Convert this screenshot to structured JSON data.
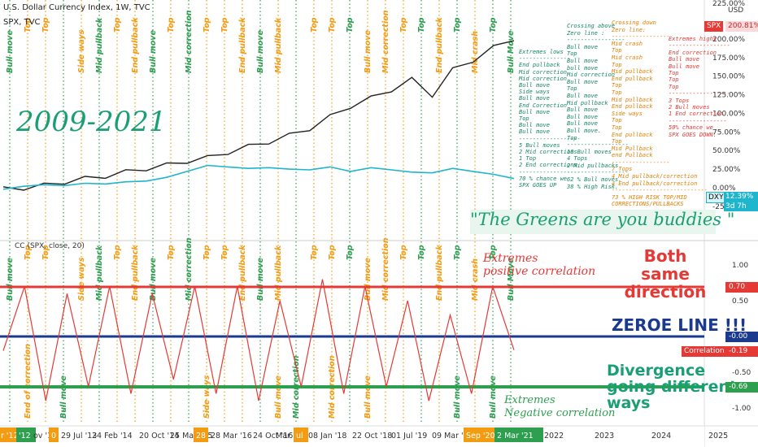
{
  "header": {
    "line1": "U.S. Dollar Currency Index, 1W, TVC",
    "line2": "SPX, TVC",
    "currency": "USD",
    "pct_top": "225.00%"
  },
  "badges": {
    "spx": {
      "name": "SPX",
      "value": "200.81%"
    },
    "dxy": {
      "name": "DXY",
      "value": "12.39%",
      "sub": "3d 7h"
    },
    "pos": {
      "value": "0.70"
    },
    "zero": {
      "value": "-0.00"
    },
    "corr": {
      "name": "Correlation",
      "value": "-0.19"
    },
    "neg": {
      "value": "-0.69"
    }
  },
  "titles": {
    "years": "2009-2021",
    "greens": "\"The Greens are you buddies \"",
    "cc_label": "CC (SPX, close, 20)",
    "ext_pos": [
      "Extremes",
      "positive correlation"
    ],
    "both": [
      "Both",
      "same direction"
    ],
    "zero_line": "ZEROE LINE !!!",
    "divergence": [
      "Divergence",
      "going different",
      "ways"
    ],
    "ext_neg": [
      "Extremes",
      "Negative correlation"
    ]
  },
  "colors": {
    "green": "#2e9e4f",
    "orange": "#f39c12",
    "red": "#e53935",
    "blue": "#1a3a8f",
    "cyan": "#1fb5cc",
    "spx": "#222"
  },
  "notes": {
    "col1": [
      "Extremes lows",
      "---------------",
      "End pullback",
      "Mid correction",
      "Mid correction",
      "Bull move",
      "Side ways",
      "Bull move",
      "End Correction",
      "Bull move",
      "Top",
      "Bull move",
      "Bull move",
      "------------------",
      "5 Bull moves",
      "2 Mid corrections",
      "1 Top",
      "2 End corrections",
      "------------------",
      "70 % chance we",
      "SPX GOES UP"
    ],
    "col2": [
      "Crossing above",
      "Zero line :",
      "-----------------",
      "Bull move",
      "Top",
      "Bull move",
      "bull move",
      "Mid correction",
      "Bull move",
      "Top",
      "Bull move",
      "Mid pullback",
      "Bull move",
      "Bull move",
      "Bull move",
      "Bull move.",
      "Top",
      "------------------",
      "10 Bull moves",
      "4 Tops",
      "2 Mid pullbacks",
      "------------------",
      "62 % Bull moves.",
      "38 % High Risk."
    ],
    "col3": [
      "Crossing down",
      "Zero line:",
      "-----------------",
      "Mid crash",
      "Top",
      "Mid crash",
      "Top",
      "Mid pullback",
      "End pullback",
      "Top",
      "Top",
      "Mid pullback",
      "End pullback",
      "Side ways",
      "Top",
      "Top",
      "End pullback",
      "Top",
      "Mid Pullback",
      "end Pullback",
      "-----------------",
      "7 Tops",
      "4 Mid pullback/correction",
      "4 End pullback/correction",
      "----------------------------",
      "73 % HIGH RISK TOP/MID",
      "CORRECTIONS/PULLBACKS"
    ],
    "col4": [
      "Extremes highs",
      "------------------",
      "End correction",
      "Bull move",
      "Bull move",
      "Top",
      "Top",
      "Top",
      "------------------",
      "3 Tops",
      "2 Bull moves",
      "1 End correction",
      "-----------------",
      "50% chance we",
      "SPX GOES DOWN."
    ]
  },
  "price_axis": [
    "225.00%",
    "200.00%",
    "175.00%",
    "150.00%",
    "125.00%",
    "100.00%",
    "75.00%",
    "50.00%",
    "25.00%",
    "0.00%",
    "-25.00%"
  ],
  "corr_axis": [
    "1.00",
    "0.50",
    "-0.50",
    "-1.00"
  ],
  "vlines": [
    {
      "color": "green",
      "top": "Bull move",
      "bottom": ""
    },
    {
      "color": "orange",
      "top": "Top",
      "bottom": "End of correction"
    },
    {
      "color": "orange",
      "top": "Top",
      "bottom": ""
    },
    {
      "color": "green",
      "top": "",
      "bottom": "Bull move"
    },
    {
      "color": "orange",
      "top": "Side ways",
      "bottom": ""
    },
    {
      "color": "green",
      "top": "Mid pullback",
      "bottom": ""
    },
    {
      "color": "orange",
      "top": "Top",
      "bottom": ""
    },
    {
      "color": "orange",
      "top": "End pullback",
      "bottom": ""
    },
    {
      "color": "green",
      "top": "Bull move",
      "bottom": ""
    },
    {
      "color": "orange",
      "top": "Top",
      "bottom": ""
    },
    {
      "color": "green",
      "top": "Mid correction",
      "bottom": ""
    },
    {
      "color": "orange",
      "top": "Top",
      "bottom": "Side ways"
    },
    {
      "color": "orange",
      "top": "Top",
      "bottom": ""
    },
    {
      "color": "orange",
      "top": "End pullback",
      "bottom": ""
    },
    {
      "color": "green",
      "top": "Bull move",
      "bottom": ""
    },
    {
      "color": "orange",
      "top": "Mid pullback",
      "bottom": "Bull move"
    },
    {
      "color": "green",
      "top": "",
      "bottom": "Mid correction"
    },
    {
      "color": "orange",
      "top": "Top",
      "bottom": ""
    },
    {
      "color": "orange",
      "top": "Top",
      "bottom": "Mid correction"
    },
    {
      "color": "green",
      "top": "Top",
      "bottom": ""
    },
    {
      "color": "orange",
      "top": "Bull move",
      "bottom": "Bull move"
    },
    {
      "color": "orange",
      "top": "Mid correction",
      "bottom": ""
    },
    {
      "color": "orange",
      "top": "Top",
      "bottom": ""
    },
    {
      "color": "green",
      "top": "Top",
      "bottom": ""
    },
    {
      "color": "orange",
      "top": "End pullback",
      "bottom": ""
    },
    {
      "color": "green",
      "top": "Top",
      "bottom": "Bull move"
    },
    {
      "color": "orange",
      "top": "Mid crash",
      "bottom": ""
    },
    {
      "color": "green",
      "top": "Top",
      "bottom": "Bull move"
    },
    {
      "color": "green",
      "top": "Bull Move",
      "bottom": ""
    }
  ],
  "date_axis": [
    "r '12",
    "'12",
    "ov '12",
    "0",
    "29 Jul '13",
    "24 Feb '14",
    "20 Oct '14",
    "25 May '15",
    "28",
    "28 Mar '16",
    "24 Oct '16",
    "Mar '17",
    "ul",
    "08 Jan '18",
    "22 Oct '18",
    "01 Jul '19",
    "09 Mar '20",
    "Sep '20",
    "2 Mar '21",
    "2022",
    "2023",
    "2024",
    "2025"
  ],
  "chart_data": {
    "type": "line",
    "title": "U.S. Dollar Currency Index, 1W, TVC",
    "series": [
      {
        "name": "SPX",
        "values": [
          -2,
          0,
          3,
          8,
          12,
          16,
          21,
          26,
          30,
          36,
          40,
          48,
          55,
          62,
          70,
          80,
          95,
          110,
          120,
          132,
          145,
          125,
          158,
          172,
          188,
          200.81
        ]
      },
      {
        "name": "DXY",
        "values": [
          -2,
          2,
          4,
          3,
          6,
          5,
          8,
          9,
          14,
          22,
          30,
          28,
          26,
          27,
          25,
          24,
          28,
          22,
          27,
          24,
          21,
          20,
          26,
          22,
          18,
          12.39
        ]
      },
      {
        "name": "CC (SPX, close, 20)",
        "values": [
          -0.2,
          0.7,
          -0.9,
          0.6,
          -0.7,
          0.7,
          -0.8,
          0.6,
          -0.6,
          0.7,
          -0.8,
          0.7,
          -0.9,
          0.5,
          -0.7,
          0.8,
          -0.8,
          0.7,
          -0.7,
          0.5,
          -0.9,
          0.3,
          -0.8,
          0.7,
          -0.19
        ]
      }
    ],
    "ylim_price": [
      -25,
      225
    ],
    "ylim_corr": [
      -1.2,
      1.2
    ],
    "ref_lines": [
      0.7,
      0,
      -0.69
    ]
  }
}
